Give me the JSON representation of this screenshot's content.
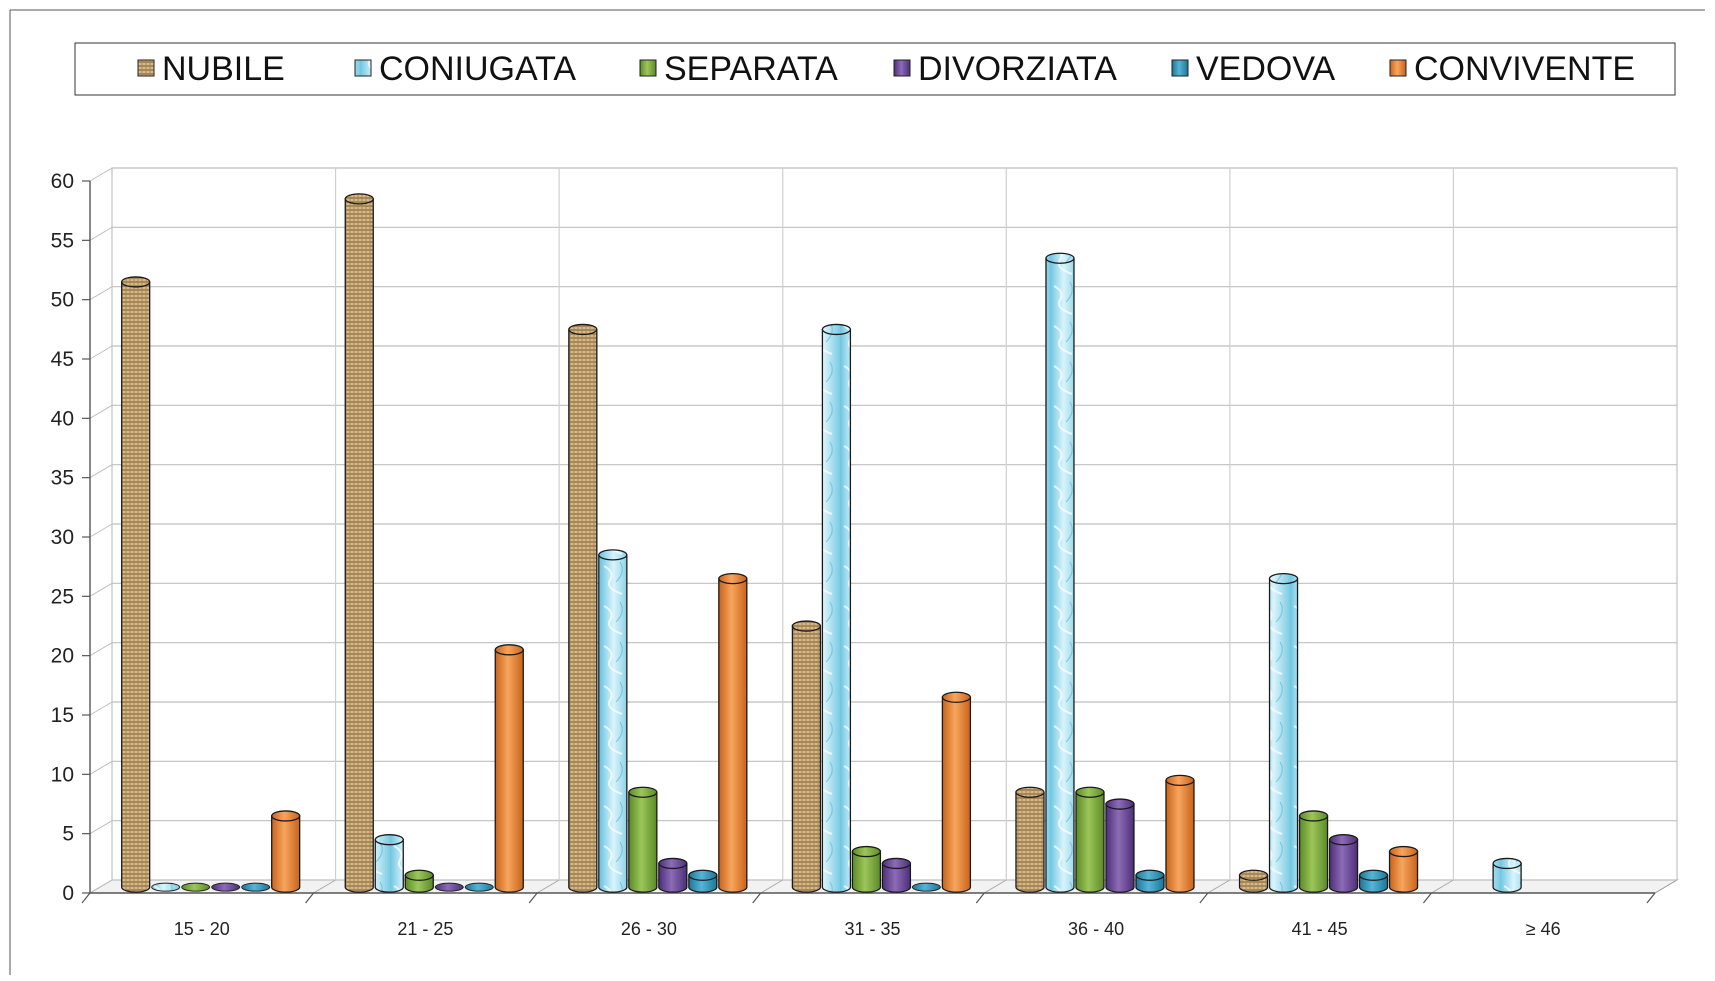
{
  "chart_data": {
    "type": "bar",
    "title": "",
    "xlabel": "",
    "ylabel": "",
    "ylim": [
      0,
      60
    ],
    "yticks": [
      0,
      5,
      10,
      15,
      20,
      25,
      30,
      35,
      40,
      45,
      50,
      55,
      60
    ],
    "grid": true,
    "legend_position": "top",
    "categories": [
      "15 - 20",
      "21 - 25",
      "26 - 30",
      "31 - 35",
      "36 - 40",
      "41 - 45",
      "≥ 46"
    ],
    "series": [
      {
        "name": "NUBILE",
        "color": "#c9a36b",
        "values": [
          51,
          58,
          47,
          22,
          8,
          1,
          0
        ]
      },
      {
        "name": "CONIUGATA",
        "color": "#9fdcef",
        "values": [
          0,
          4,
          28,
          47,
          53,
          26,
          2
        ]
      },
      {
        "name": "SEPARATA",
        "color": "#77a23d",
        "values": [
          0,
          1,
          8,
          3,
          8,
          6,
          0
        ]
      },
      {
        "name": "DIVORZIATA",
        "color": "#6a4696",
        "values": [
          0,
          0,
          2,
          2,
          7,
          4,
          0
        ]
      },
      {
        "name": "VEDOVA",
        "color": "#2f95b8",
        "values": [
          0,
          0,
          1,
          0,
          1,
          1,
          0
        ]
      },
      {
        "name": "CONVIVENTE",
        "color": "#e8822e",
        "values": [
          6,
          20,
          26,
          16,
          9,
          3,
          0
        ]
      }
    ]
  }
}
